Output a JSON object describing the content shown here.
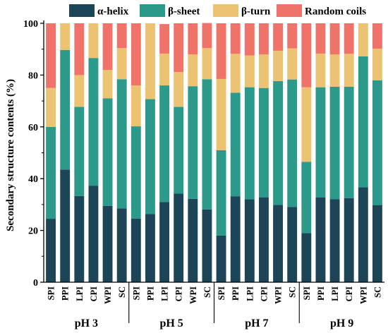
{
  "chart_data": {
    "type": "bar",
    "stacked": true,
    "ylabel": "Secondary structure contents (%)",
    "ylim": [
      0,
      100
    ],
    "yticks": [
      0,
      20,
      40,
      60,
      80,
      100
    ],
    "grid": false,
    "legend_position": "top",
    "groups": [
      {
        "label": "pH 3",
        "categories": [
          "SPI",
          "PPI",
          "LPI",
          "CPI",
          "WPI",
          "SC"
        ]
      },
      {
        "label": "pH 5",
        "categories": [
          "SPI",
          "PPI",
          "LPI",
          "CPI",
          "WPI",
          "SC"
        ]
      },
      {
        "label": "pH 7",
        "categories": [
          "SPI",
          "PPI",
          "LPI",
          "CPI",
          "WPI",
          "SC"
        ]
      },
      {
        "label": "pH 9",
        "categories": [
          "SPI",
          "PPI",
          "LPI",
          "CPI",
          "WPI",
          "SC"
        ]
      }
    ],
    "series": [
      {
        "name": "α-helix",
        "color": "#1c4658",
        "values": [
          24.5,
          43.5,
          33.3,
          37.3,
          29.5,
          28.5,
          24.6,
          26.3,
          31.0,
          34.2,
          32.2,
          28.1,
          18.0,
          33.2,
          32.0,
          32.8,
          29.9,
          29.1,
          19.0,
          32.7,
          32.1,
          32.5,
          36.7,
          29.8
        ]
      },
      {
        "name": "β-sheet",
        "color": "#2b9a8a",
        "values": [
          35.5,
          46.2,
          34.4,
          49.3,
          41.5,
          49.9,
          35.6,
          44.4,
          45.0,
          33.5,
          43.5,
          50.3,
          33.0,
          40.0,
          43.3,
          42.2,
          47.8,
          49.2,
          27.5,
          42.6,
          43.4,
          43.0,
          50.5,
          48.2
        ]
      },
      {
        "name": "β-turn",
        "color": "#ecc273",
        "values": [
          15.0,
          10.3,
          12.3,
          13.4,
          11.0,
          12.0,
          15.8,
          29.3,
          12.3,
          13.5,
          12.3,
          12.0,
          27.5,
          15.0,
          12.3,
          13.0,
          11.7,
          12.0,
          28.8,
          13.0,
          12.5,
          12.7,
          12.8,
          12.2
        ]
      },
      {
        "name": "Random coils",
        "color": "#f0736a",
        "values": [
          25.0,
          0.0,
          20.0,
          0.0,
          18.0,
          9.6,
          24.0,
          0.0,
          11.4,
          18.8,
          12.0,
          9.7,
          21.5,
          11.8,
          12.4,
          12.0,
          10.6,
          9.7,
          24.7,
          11.7,
          12.0,
          11.8,
          0.0,
          9.8
        ]
      }
    ],
    "error_bar_color": "#e38b62"
  }
}
